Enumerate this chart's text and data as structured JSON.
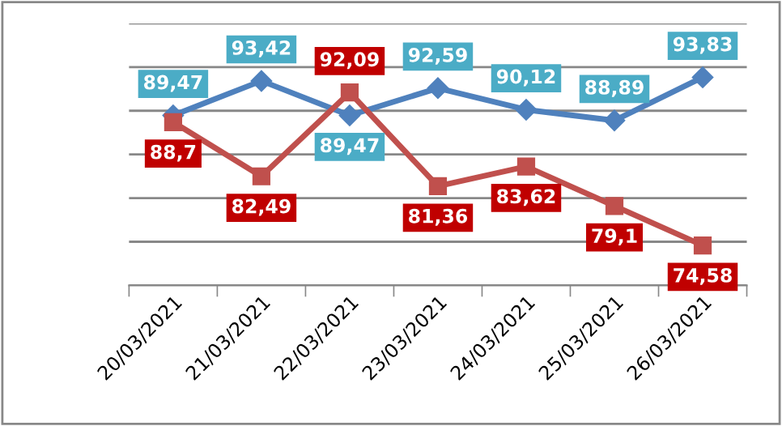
{
  "chart_data": {
    "type": "line",
    "categories": [
      "20/03/2021",
      "21/03/2021",
      "22/03/2021",
      "23/03/2021",
      "24/03/2021",
      "25/03/2021",
      "26/03/2021"
    ],
    "series": [
      {
        "color": "#4f81bd",
        "marker": "diamond",
        "values": [
          89.47,
          93.42,
          89.47,
          92.59,
          90.12,
          88.89,
          93.83
        ],
        "value_labels": [
          "89,47",
          "93,42",
          "89,47",
          "92,59",
          "90,12",
          "88,89",
          "93,83"
        ]
      },
      {
        "color": "#c0504d",
        "marker": "square",
        "values": [
          88.7,
          82.49,
          92.09,
          81.36,
          83.62,
          79.1,
          74.58
        ],
        "value_labels": [
          "88,7",
          "82,49",
          "92,09",
          "81,36",
          "83,62",
          "79,1",
          "74,58"
        ]
      }
    ],
    "ylim": [
      70,
      100
    ],
    "yticks": [
      {
        "value": 70,
        "label": null
      },
      {
        "value": 75,
        "label": null
      },
      {
        "value": 80,
        "label": null
      },
      {
        "value": 85,
        "label": null
      },
      {
        "value": 90,
        "label": null
      },
      {
        "value": 95,
        "label": null
      },
      {
        "value": 100,
        "label": null
      }
    ],
    "grid": "y",
    "legend": false,
    "line_style": "solid",
    "tick_labels": "x"
  }
}
